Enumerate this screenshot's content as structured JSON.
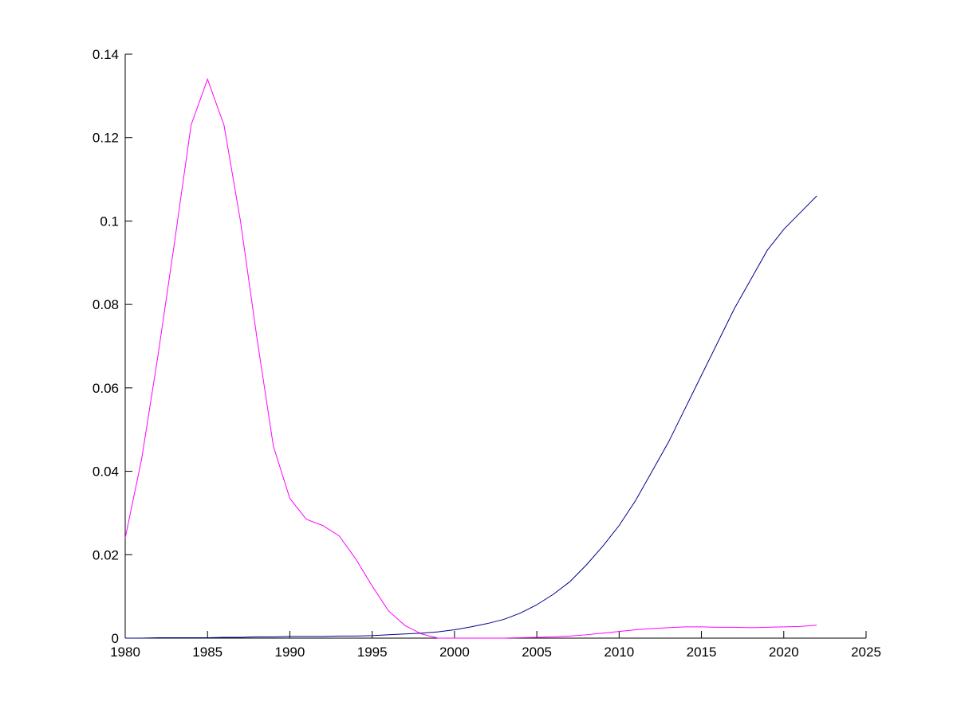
{
  "chart_data": {
    "type": "line",
    "x": [
      1980,
      1981,
      1982,
      1983,
      1984,
      1985,
      1986,
      1987,
      1988,
      1989,
      1990,
      1991,
      1992,
      1993,
      1994,
      1995,
      1996,
      1997,
      1998,
      1999,
      2000,
      2001,
      2002,
      2003,
      2004,
      2005,
      2006,
      2007,
      2008,
      2009,
      2010,
      2011,
      2012,
      2013,
      2014,
      2015,
      2016,
      2017,
      2018,
      2019,
      2020,
      2021,
      2022
    ],
    "series": [
      {
        "color": "#ff00ff",
        "values": [
          0.024,
          0.043,
          0.068,
          0.095,
          0.123,
          0.134,
          0.123,
          0.1,
          0.072,
          0.046,
          0.0335,
          0.0285,
          0.027,
          0.0245,
          0.019,
          0.0125,
          0.0065,
          0.003,
          0.001,
          0,
          0,
          0,
          0,
          0,
          0.0001,
          0.0002,
          0.0003,
          0.0005,
          0.0008,
          0.0012,
          0.0016,
          0.002,
          0.0023,
          0.0025,
          0.0027,
          0.0027,
          0.0026,
          0.0026,
          0.0025,
          0.0026,
          0.0027,
          0.0028,
          0.0031
        ]
      },
      {
        "color": "#00008b",
        "values": [
          0,
          0,
          0.0001,
          0.0001,
          0.0001,
          0.0001,
          0.0002,
          0.0002,
          0.0003,
          0.0003,
          0.0004,
          0.0004,
          0.0004,
          0.0005,
          0.0005,
          0.0006,
          0.0008,
          0.001,
          0.0012,
          0.0015,
          0.002,
          0.0027,
          0.0035,
          0.0045,
          0.006,
          0.008,
          0.0105,
          0.0135,
          0.0175,
          0.022,
          0.027,
          0.033,
          0.04,
          0.047,
          0.055,
          0.063,
          0.071,
          0.079,
          0.086,
          0.093,
          0.098,
          0.102,
          0.106
        ]
      }
    ],
    "xlim": [
      1980,
      2025
    ],
    "xticks": [
      1980,
      1985,
      1990,
      1995,
      2000,
      2005,
      2010,
      2015,
      2020,
      2025
    ],
    "ylim": [
      0,
      0.14
    ],
    "yticks": [
      0,
      0.02,
      0.04,
      0.06,
      0.08,
      0.1,
      0.12,
      0.14
    ],
    "grid": false
  }
}
